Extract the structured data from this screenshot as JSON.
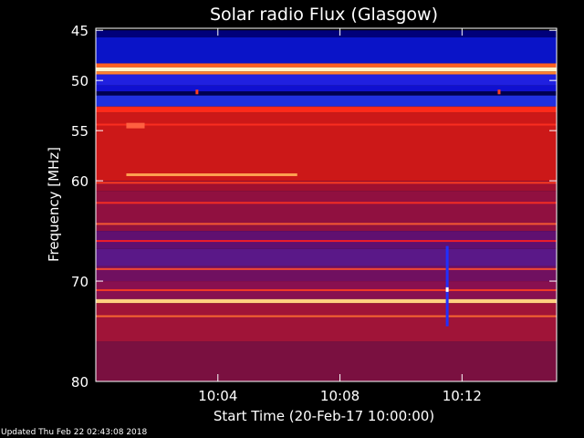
{
  "chart_data": {
    "type": "heatmap",
    "title": "Solar radio Flux (Glasgow)",
    "ylabel": "Frequency [MHz]",
    "xlabel": "Start Time (20-Feb-17 10:00:00)",
    "x_unit": "minutes after 10:00",
    "xlim": [
      0,
      15.1
    ],
    "ylim": [
      44.8,
      80
    ],
    "y_inverted": true,
    "yticks": [
      {
        "value": 45,
        "label": "45"
      },
      {
        "value": 50,
        "label": "50"
      },
      {
        "value": 55,
        "label": "55"
      },
      {
        "value": 60,
        "label": "60"
      },
      {
        "value": 70,
        "label": "70"
      },
      {
        "value": 80,
        "label": "80"
      }
    ],
    "xticks": [
      {
        "value": 4,
        "label": "10:04"
      },
      {
        "value": 8,
        "label": "10:08"
      },
      {
        "value": 12,
        "label": "10:12"
      }
    ],
    "colormap": [
      "#000040",
      "#0000ff",
      "#800040",
      "#ff0000",
      "#ffa040",
      "#ffffff"
    ],
    "bands": [
      {
        "from": 45.0,
        "to": 45.7,
        "color": "#00007a"
      },
      {
        "from": 45.7,
        "to": 48.3,
        "color": "#0a14c8"
      },
      {
        "from": 48.3,
        "to": 48.7,
        "color": "#ff6020"
      },
      {
        "from": 48.7,
        "to": 49.1,
        "color": "#fff4c8"
      },
      {
        "from": 49.1,
        "to": 49.4,
        "color": "#ff8030"
      },
      {
        "from": 49.4,
        "to": 50.5,
        "color": "#2020e0"
      },
      {
        "from": 50.5,
        "to": 51.1,
        "color": "#1010d0"
      },
      {
        "from": 51.1,
        "to": 51.5,
        "color": "#000050"
      },
      {
        "from": 51.5,
        "to": 52.6,
        "color": "#2030e0"
      },
      {
        "from": 52.6,
        "to": 53.2,
        "color": "#ff2a1a"
      },
      {
        "from": 53.2,
        "to": 60.0,
        "color": "#cc1818"
      },
      {
        "from": 60.0,
        "to": 61.0,
        "color": "#a01030"
      },
      {
        "from": 61.0,
        "to": 65.0,
        "color": "#901040"
      },
      {
        "from": 65.0,
        "to": 66.8,
        "color": "#601070"
      },
      {
        "from": 66.8,
        "to": 68.5,
        "color": "#5a1888"
      },
      {
        "from": 68.5,
        "to": 70.0,
        "color": "#701060"
      },
      {
        "from": 70.0,
        "to": 71.8,
        "color": "#881050"
      },
      {
        "from": 71.8,
        "to": 72.2,
        "color": "#ffd080"
      },
      {
        "from": 72.2,
        "to": 76.0,
        "color": "#a01438"
      },
      {
        "from": 76.0,
        "to": 80.0,
        "color": "#7a1040"
      }
    ],
    "lines": [
      {
        "freq": 54.4,
        "color": "#ff3020"
      },
      {
        "freq": 60.2,
        "color": "#ff4020"
      },
      {
        "freq": 62.2,
        "color": "#ff3020"
      },
      {
        "freq": 64.3,
        "color": "#ff6030"
      },
      {
        "freq": 66.0,
        "color": "#ff2020"
      },
      {
        "freq": 68.8,
        "color": "#ff5030"
      },
      {
        "freq": 70.9,
        "color": "#ff4020"
      },
      {
        "freq": 73.5,
        "color": "#ff7030"
      }
    ],
    "features": [
      {
        "kind": "segment",
        "t_start": 1.0,
        "t_end": 6.6,
        "freq": 59.4,
        "color": "#ffa050"
      },
      {
        "kind": "patch",
        "t_start": 1.0,
        "t_end": 1.6,
        "freq": 54.5,
        "color": "#ff6040"
      },
      {
        "kind": "spike",
        "t": 11.5,
        "f_start": 66.5,
        "f_end": 74.5,
        "color": "#2030ff"
      },
      {
        "kind": "dot",
        "t": 11.5,
        "freq": 70.8,
        "color": "#ffffff"
      },
      {
        "kind": "dot",
        "t": 3.3,
        "freq": 51.1,
        "color": "#ff4020"
      },
      {
        "kind": "dot",
        "t": 13.2,
        "freq": 51.1,
        "color": "#ff4020"
      }
    ]
  },
  "footer": {
    "updated": "Updated Thu Feb 22 02:43:08 2018"
  }
}
